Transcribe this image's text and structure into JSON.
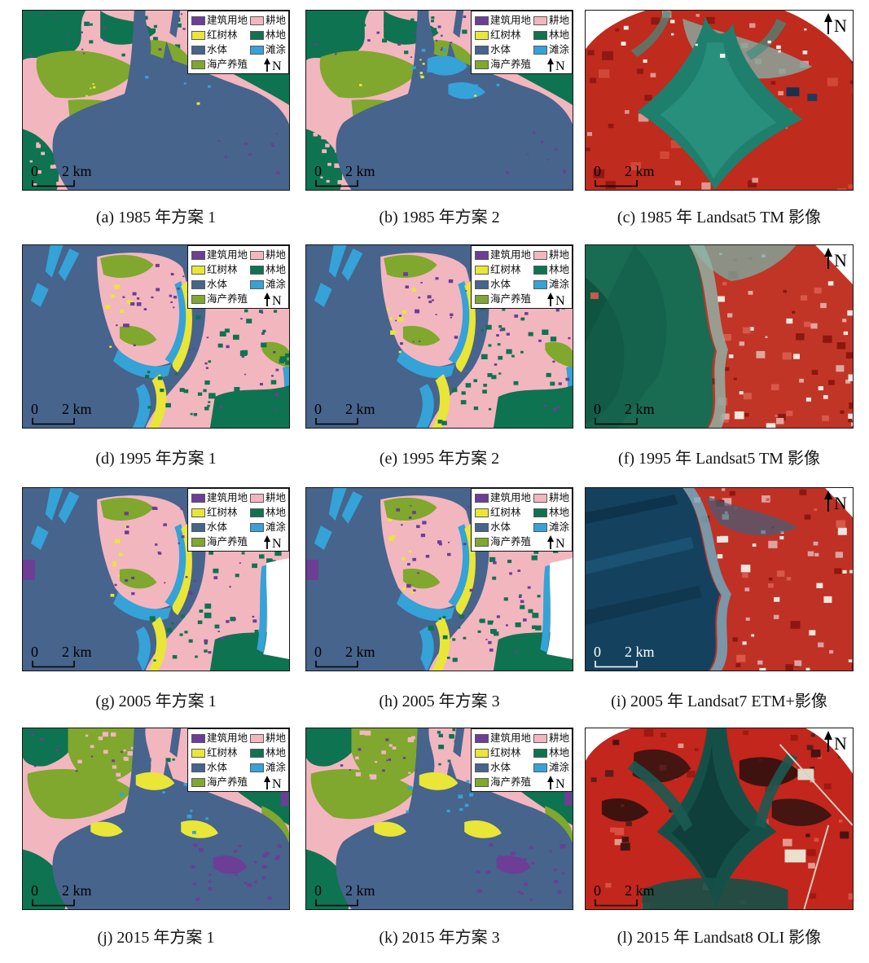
{
  "panels": [
    {
      "id": "a",
      "caption": "(a) 1985 年方案 1",
      "kind": "classified",
      "scene": "cls1985",
      "variant": 1,
      "scalebar_white": false
    },
    {
      "id": "b",
      "caption": "(b) 1985 年方案 2",
      "kind": "classified",
      "scene": "cls1985",
      "variant": 2,
      "scalebar_white": false
    },
    {
      "id": "c",
      "caption": "(c) 1985 年 Landsat5 TM 影像",
      "kind": "satellite",
      "scene": "sat1985",
      "variant": 1,
      "scalebar_white": false
    },
    {
      "id": "d",
      "caption": "(d) 1995 年方案 1",
      "kind": "classified",
      "scene": "cls1995",
      "variant": 1,
      "scalebar_white": false
    },
    {
      "id": "e",
      "caption": "(e) 1995 年方案 2",
      "kind": "classified",
      "scene": "cls1995",
      "variant": 2,
      "scalebar_white": false
    },
    {
      "id": "f",
      "caption": "(f) 1995 年 Landsat5 TM 影像",
      "kind": "satellite",
      "scene": "sat1995",
      "variant": 1,
      "scalebar_white": false
    },
    {
      "id": "g",
      "caption": "(g) 2005 年方案 1",
      "kind": "classified",
      "scene": "cls2005",
      "variant": 1,
      "scalebar_white": false
    },
    {
      "id": "h",
      "caption": "(h) 2005 年方案 3",
      "kind": "classified",
      "scene": "cls2005",
      "variant": 2,
      "scalebar_white": false
    },
    {
      "id": "i",
      "caption": "(i) 2005 年 Landsat7 ETM+影像",
      "kind": "satellite",
      "scene": "sat2005",
      "variant": 1,
      "scalebar_white": true
    },
    {
      "id": "j",
      "caption": "(j) 2015 年方案 1",
      "kind": "classified",
      "scene": "cls2015",
      "variant": 1,
      "scalebar_white": false
    },
    {
      "id": "k",
      "caption": "(k) 2015 年方案 3",
      "kind": "classified",
      "scene": "cls2015",
      "variant": 2,
      "scalebar_white": false
    },
    {
      "id": "l",
      "caption": "(l) 2015 年 Landsat8 OLI 影像",
      "kind": "satellite",
      "scene": "sat2015",
      "variant": 1,
      "scalebar_white": false
    }
  ],
  "legend": {
    "items_left": [
      {
        "label": "建筑用地",
        "color": "#6C3E96"
      },
      {
        "label": "红树林",
        "color": "#E9E637"
      },
      {
        "label": "水体",
        "color": "#46648C"
      },
      {
        "label": "海产养殖",
        "color": "#80A72E"
      }
    ],
    "items_right": [
      {
        "label": "耕地",
        "color": "#F2B6BF"
      },
      {
        "label": "林地",
        "color": "#0E7350"
      },
      {
        "label": "滩涂",
        "color": "#35A2D8"
      }
    ],
    "north_label": "N"
  },
  "scalebar": {
    "zero": "0",
    "label": "2 km"
  },
  "map_colors": {
    "construction": "#6C3E96",
    "mangrove": "#E9E637",
    "water": "#46648C",
    "aquaculture": "#80A72E",
    "cropland": "#F2B6BF",
    "forest": "#0E7350",
    "tidal_flat": "#35A2D8"
  }
}
